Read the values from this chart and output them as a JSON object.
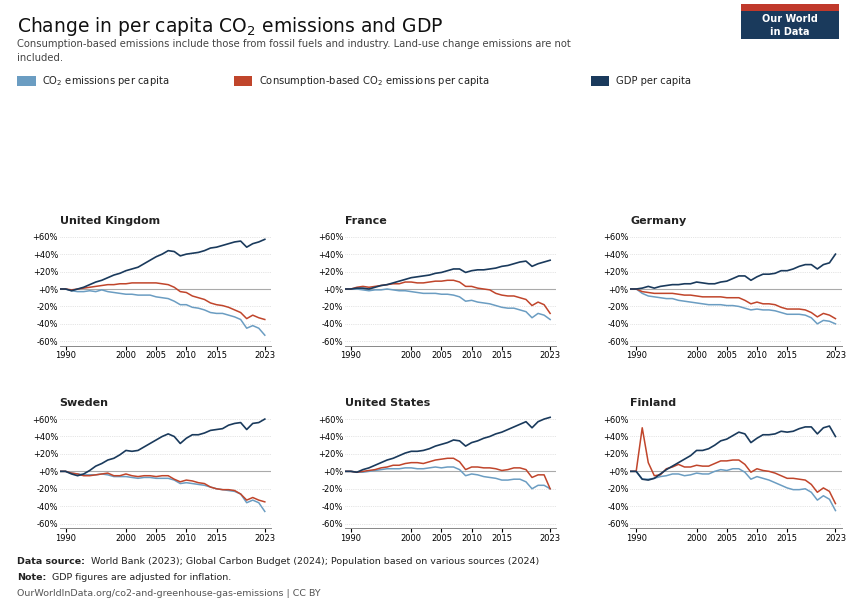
{
  "title": "Change in per capita CO₂ emissions and GDP",
  "subtitle": "Consumption-based emissions include those from fossil fuels and industry. Land-use change emissions are not\nincluded.",
  "footnote1_bold": "Data source:",
  "footnote1_rest": " World Bank (2023); Global Carbon Budget (2024); Population based on various sources (2024)",
  "footnote2_bold": "Note:",
  "footnote2_rest": " GDP figures are adjusted for inflation.",
  "footnote3": "OurWorldInData.org/co2-and-greenhouse-gas-emissions | CC BY",
  "owid_box_color": "#1a3a5c",
  "owid_red_color": "#c0392b",
  "background_color": "#ffffff",
  "grid_color": "#cccccc",
  "zero_line_color": "#aaaaaa",
  "countries": [
    "United Kingdom",
    "France",
    "Germany",
    "Sweden",
    "United States",
    "Finland"
  ],
  "years": [
    1989,
    1990,
    1991,
    1992,
    1993,
    1994,
    1995,
    1996,
    1997,
    1998,
    1999,
    2000,
    2001,
    2002,
    2003,
    2004,
    2005,
    2006,
    2007,
    2008,
    2009,
    2010,
    2011,
    2012,
    2013,
    2014,
    2015,
    2016,
    2017,
    2018,
    2019,
    2020,
    2021,
    2022,
    2023
  ],
  "data": {
    "United Kingdom": {
      "co2": [
        0,
        0,
        -2,
        -3,
        -3,
        -2,
        -3,
        -1,
        -3,
        -4,
        -5,
        -6,
        -6,
        -7,
        -7,
        -7,
        -9,
        -10,
        -11,
        -14,
        -18,
        -18,
        -21,
        -22,
        -24,
        -27,
        -28,
        -28,
        -30,
        -32,
        -35,
        -45,
        -42,
        -45,
        -53
      ],
      "consumption_co2": [
        0,
        0,
        -1,
        0,
        1,
        2,
        3,
        4,
        5,
        5,
        6,
        6,
        7,
        7,
        7,
        7,
        7,
        6,
        5,
        2,
        -3,
        -4,
        -8,
        -10,
        -12,
        -16,
        -18,
        -19,
        -21,
        -24,
        -27,
        -34,
        -30,
        -33,
        -35
      ],
      "gdp": [
        0,
        0,
        -2,
        0,
        2,
        5,
        8,
        10,
        13,
        16,
        18,
        21,
        23,
        25,
        29,
        33,
        37,
        40,
        44,
        43,
        38,
        40,
        41,
        42,
        44,
        47,
        48,
        50,
        52,
        54,
        55,
        48,
        52,
        54,
        57
      ]
    },
    "France": {
      "co2": [
        0,
        0,
        0,
        -1,
        -2,
        -1,
        -1,
        0,
        -1,
        -2,
        -2,
        -3,
        -4,
        -5,
        -5,
        -5,
        -6,
        -6,
        -7,
        -9,
        -14,
        -13,
        -15,
        -16,
        -17,
        -19,
        -21,
        -22,
        -22,
        -24,
        -26,
        -33,
        -28,
        -30,
        -35
      ],
      "consumption_co2": [
        0,
        0,
        2,
        3,
        2,
        3,
        4,
        5,
        6,
        6,
        8,
        8,
        7,
        7,
        8,
        9,
        9,
        10,
        10,
        8,
        3,
        3,
        1,
        0,
        -1,
        -5,
        -7,
        -8,
        -8,
        -10,
        -12,
        -19,
        -15,
        -18,
        -28
      ],
      "gdp": [
        0,
        0,
        1,
        1,
        0,
        2,
        4,
        5,
        7,
        9,
        11,
        13,
        14,
        15,
        16,
        18,
        19,
        21,
        23,
        23,
        19,
        21,
        22,
        22,
        23,
        24,
        26,
        27,
        29,
        31,
        32,
        26,
        29,
        31,
        33
      ]
    },
    "Germany": {
      "co2": [
        0,
        0,
        -5,
        -8,
        -9,
        -10,
        -11,
        -11,
        -13,
        -14,
        -15,
        -16,
        -17,
        -18,
        -18,
        -18,
        -19,
        -19,
        -20,
        -22,
        -24,
        -23,
        -24,
        -24,
        -25,
        -27,
        -29,
        -29,
        -29,
        -30,
        -33,
        -40,
        -36,
        -37,
        -40
      ],
      "consumption_co2": [
        0,
        0,
        -3,
        -4,
        -5,
        -5,
        -5,
        -5,
        -6,
        -7,
        -7,
        -8,
        -9,
        -9,
        -9,
        -9,
        -10,
        -10,
        -10,
        -13,
        -17,
        -15,
        -17,
        -17,
        -18,
        -21,
        -23,
        -23,
        -23,
        -24,
        -27,
        -32,
        -28,
        -30,
        -34
      ],
      "gdp": [
        0,
        0,
        1,
        3,
        1,
        3,
        4,
        5,
        5,
        6,
        6,
        8,
        7,
        6,
        6,
        8,
        9,
        12,
        15,
        15,
        10,
        14,
        17,
        17,
        18,
        21,
        21,
        23,
        26,
        28,
        28,
        23,
        28,
        30,
        40
      ]
    },
    "Sweden": {
      "co2": [
        0,
        0,
        -2,
        -3,
        -4,
        -4,
        -4,
        -3,
        -4,
        -6,
        -6,
        -6,
        -7,
        -8,
        -7,
        -7,
        -8,
        -8,
        -8,
        -10,
        -14,
        -13,
        -14,
        -15,
        -16,
        -18,
        -20,
        -21,
        -22,
        -23,
        -26,
        -36,
        -33,
        -36,
        -46
      ],
      "consumption_co2": [
        0,
        0,
        -2,
        -3,
        -5,
        -5,
        -4,
        -3,
        -2,
        -5,
        -5,
        -3,
        -5,
        -6,
        -5,
        -5,
        -6,
        -5,
        -5,
        -9,
        -12,
        -10,
        -11,
        -13,
        -14,
        -18,
        -20,
        -21,
        -21,
        -22,
        -26,
        -33,
        -30,
        -33,
        -35
      ],
      "gdp": [
        0,
        0,
        -3,
        -5,
        -3,
        1,
        6,
        9,
        13,
        15,
        19,
        24,
        23,
        24,
        28,
        32,
        36,
        40,
        43,
        40,
        32,
        38,
        42,
        42,
        44,
        47,
        48,
        49,
        53,
        55,
        56,
        48,
        55,
        56,
        60
      ]
    },
    "United States": {
      "co2": [
        0,
        0,
        -1,
        -1,
        0,
        1,
        2,
        3,
        3,
        3,
        4,
        4,
        3,
        3,
        4,
        5,
        4,
        5,
        5,
        2,
        -5,
        -3,
        -4,
        -6,
        -7,
        -8,
        -10,
        -10,
        -9,
        -9,
        -12,
        -20,
        -16,
        -16,
        -20
      ],
      "consumption_co2": [
        0,
        0,
        -1,
        0,
        1,
        2,
        4,
        5,
        7,
        7,
        9,
        10,
        10,
        9,
        11,
        13,
        14,
        15,
        15,
        11,
        2,
        5,
        5,
        4,
        4,
        3,
        1,
        2,
        4,
        4,
        2,
        -7,
        -4,
        -4,
        -20
      ],
      "gdp": [
        0,
        0,
        -1,
        2,
        4,
        7,
        10,
        13,
        15,
        18,
        21,
        23,
        23,
        24,
        26,
        29,
        31,
        33,
        36,
        35,
        29,
        33,
        35,
        38,
        40,
        43,
        45,
        48,
        51,
        54,
        57,
        50,
        57,
        60,
        62
      ]
    },
    "Finland": {
      "co2": [
        0,
        0,
        -9,
        -9,
        -8,
        -6,
        -5,
        -3,
        -3,
        -5,
        -4,
        -2,
        -3,
        -3,
        0,
        2,
        1,
        3,
        3,
        -1,
        -9,
        -6,
        -8,
        -10,
        -13,
        -16,
        -19,
        -21,
        -21,
        -20,
        -24,
        -33,
        -28,
        -32,
        -45
      ],
      "consumption_co2": [
        0,
        0,
        50,
        10,
        -5,
        -4,
        3,
        5,
        8,
        5,
        5,
        7,
        6,
        6,
        9,
        12,
        12,
        13,
        13,
        8,
        -1,
        3,
        1,
        0,
        -2,
        -5,
        -8,
        -8,
        -9,
        -10,
        -15,
        -24,
        -19,
        -23,
        -37
      ],
      "gdp": [
        0,
        0,
        -9,
        -10,
        -8,
        -3,
        2,
        6,
        10,
        14,
        18,
        24,
        24,
        26,
        30,
        35,
        37,
        41,
        45,
        43,
        33,
        38,
        42,
        42,
        43,
        46,
        45,
        46,
        49,
        51,
        51,
        43,
        50,
        52,
        40
      ]
    }
  },
  "ylim": [
    -65,
    70
  ],
  "yticks": [
    -60,
    -40,
    -20,
    0,
    20,
    40,
    60
  ],
  "ytick_labels": [
    "-60%",
    "-40%",
    "-20%",
    "+0%",
    "+20%",
    "+40%",
    "+60%"
  ],
  "xticks": [
    1990,
    2000,
    2005,
    2010,
    2015,
    2023
  ],
  "xlim": [
    1989,
    2024
  ],
  "color_co2": "#6b9dc2",
  "color_consumption_co2": "#c0452b",
  "color_gdp": "#1a3a5c"
}
